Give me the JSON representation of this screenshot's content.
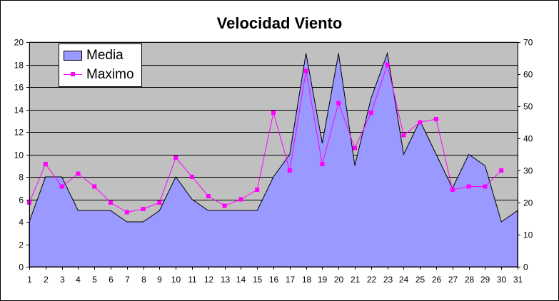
{
  "chart_data": {
    "type": "area",
    "title": "Velocidad Viento",
    "x": [
      "1",
      "2",
      "3",
      "4",
      "5",
      "6",
      "7",
      "8",
      "9",
      "10",
      "11",
      "12",
      "13",
      "14",
      "15",
      "16",
      "17",
      "18",
      "19",
      "20",
      "21",
      "22",
      "23",
      "24",
      "25",
      "26",
      "27",
      "28",
      "29",
      "30",
      "31"
    ],
    "left_axis": {
      "min": 0,
      "max": 20,
      "step": 2,
      "ticks": [
        "0",
        "2",
        "4",
        "6",
        "8",
        "10",
        "12",
        "14",
        "16",
        "18",
        "20"
      ]
    },
    "right_axis": {
      "min": 0,
      "max": 70,
      "step": 10,
      "ticks": [
        "0",
        "10",
        "20",
        "30",
        "40",
        "50",
        "60",
        "70"
      ]
    },
    "grid": true,
    "legend_position": "top-left",
    "series": [
      {
        "name": "Media",
        "type": "area",
        "axis": "left",
        "color": "#9999ff",
        "values": [
          4,
          8,
          8,
          5,
          5,
          5,
          4,
          4,
          5,
          8,
          6,
          5,
          5,
          5,
          5,
          8,
          10,
          19,
          11,
          19,
          9,
          15,
          19,
          10,
          13,
          10,
          7,
          10,
          9,
          4,
          5
        ]
      },
      {
        "name": "Maximo",
        "type": "line",
        "axis": "right",
        "color": "#ff00ff",
        "values": [
          20,
          32,
          25,
          29,
          25,
          20,
          17,
          18,
          20,
          34,
          28,
          22,
          19,
          21,
          24,
          48,
          30,
          61,
          32,
          51,
          37,
          48,
          63,
          41,
          45,
          46,
          24,
          25,
          25,
          30,
          null
        ]
      }
    ],
    "plot_background": "#c0c0c0"
  }
}
